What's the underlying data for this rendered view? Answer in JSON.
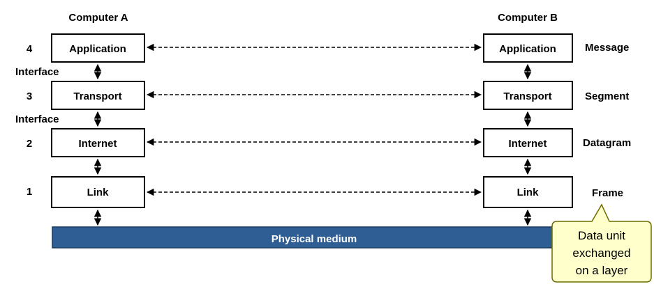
{
  "computers": {
    "a_title": "Computer A",
    "b_title": "Computer B"
  },
  "layers": [
    {
      "number": "4",
      "name": "Application",
      "data_unit": "Message"
    },
    {
      "number": "3",
      "name": "Transport",
      "data_unit": "Segment"
    },
    {
      "number": "2",
      "name": "Internet",
      "data_unit": "Datagram"
    },
    {
      "number": "1",
      "name": "Link",
      "data_unit": "Frame"
    }
  ],
  "interfaces": [
    "Interface",
    "Interface"
  ],
  "physical_medium": "Physical medium",
  "callout": {
    "line1": "Data unit",
    "line2": "exchanged",
    "line3": "on a layer"
  },
  "colors": {
    "medium": "#2e5e94",
    "callout_fill": "#ffffcc"
  }
}
